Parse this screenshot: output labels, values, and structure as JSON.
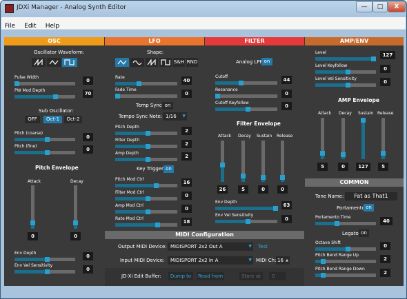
{
  "window": {
    "title": "JDXi Manager - Analog Synth Editor",
    "minimize": "—",
    "maximize": "□",
    "close": "X"
  },
  "menu": [
    "File",
    "Edit",
    "Help"
  ],
  "colors": {
    "osc_header": "#f09a1a",
    "lfo_header": "#e8742e",
    "filter_header": "#e53a3a",
    "amp_header": "#c76b2d",
    "common_header": "#6a6a6a",
    "midi_header": "#6a6a6a",
    "accent": "#2379a8"
  },
  "osc": {
    "header": "OSC",
    "waveform_label": "Oscillator Waveform:",
    "waveform_icons": [
      "saw-wave-icon",
      "triangle-wave-icon",
      "square-wave-icon"
    ],
    "waveform_selected": 2,
    "pulse_width": {
      "label": "Pulse Width",
      "value": 0
    },
    "pw_mod_depth": {
      "label": "PW Mod Depth",
      "value": 70
    },
    "sub_osc_label": "Sub Oscillator:",
    "sub_osc_options": [
      "OFF",
      "Oct-1",
      "Oct-2"
    ],
    "sub_osc_selected": 1,
    "pitch_coarse": {
      "label": "Pitch (coarse)",
      "value": 0
    },
    "pitch_fine": {
      "label": "Pitch (fine)",
      "value": 0
    },
    "pitch_env_title": "Pitch Envelope",
    "attack": {
      "label": "Attack",
      "value": 0
    },
    "decay": {
      "label": "Decay",
      "value": 0
    },
    "env_depth": {
      "label": "Env Depth",
      "value": 0
    },
    "env_vel_sens": {
      "label": "Env Vel Sensitivity",
      "value": 0
    }
  },
  "lfo": {
    "header": "LFO",
    "shape_label": "Shape:",
    "shape_buttons": [
      "triangle-wave-icon",
      "sine-wave-icon",
      "saw-wave-icon",
      "square-wave-icon",
      "S&H",
      "RND"
    ],
    "shape_selected": 0,
    "rate": {
      "label": "Rate",
      "value": 40
    },
    "fade_time": {
      "label": "Fade Time",
      "value": 0
    },
    "tempo_sync_label": "Temp Sync:",
    "tempo_sync_value": "on",
    "tempo_sync_note_label": "Tempo Sync Note:",
    "tempo_sync_note_value": "1/16",
    "pitch_depth": {
      "label": "Pitch Depth",
      "value": 2
    },
    "filter_depth": {
      "label": "Filter Depth",
      "value": 2
    },
    "amp_depth": {
      "label": "Amp Depth",
      "value": 2
    },
    "key_trigger_label": "Key Trigger:",
    "key_trigger_value": "on",
    "pitch_mod_ctrl": {
      "label": "Pitch Mod Ctrl",
      "value": 16
    },
    "filter_mod_ctrl": {
      "label": "Filter Mod Ctrl",
      "value": 0
    },
    "amp_mod_ctrl": {
      "label": "Amp Mod Ctrl",
      "value": 0
    },
    "rate_mod_ctrl": {
      "label": "Rate Mod Ctrl",
      "value": 18
    }
  },
  "filter": {
    "header": "FILTER",
    "analog_lpf_label": "Analog LPF:",
    "analog_lpf_value": "on",
    "cutoff": {
      "label": "Cutoff",
      "value": 44
    },
    "resonance": {
      "label": "Resonance",
      "value": 0
    },
    "cutoff_keyfollow": {
      "label": "Cutoff Keyfollow",
      "value": 0
    },
    "env_title": "Filter Envelope",
    "attack": {
      "label": "Attack",
      "value": 26
    },
    "decay": {
      "label": "Decay",
      "value": 5
    },
    "sustain": {
      "label": "Sustain",
      "value": 0
    },
    "release": {
      "label": "Release",
      "value": 0
    },
    "env_depth": {
      "label": "Env Depth",
      "value": 63
    },
    "env_vel_sens": {
      "label": "Env Vel Sensitivity",
      "value": 0
    }
  },
  "amp": {
    "header": "AMP/ENV",
    "level": {
      "label": "Level",
      "value": 127
    },
    "level_keyfollow": {
      "label": "Level Keyfollow",
      "value": 0
    },
    "level_vel_sens": {
      "label": "Level Vel Sensitivity",
      "value": 0
    },
    "env_title": "AMP Envelope",
    "attack": {
      "label": "Attack",
      "value": 5
    },
    "decay": {
      "label": "Decay",
      "value": 0
    },
    "sustain": {
      "label": "Sustain",
      "value": 127
    },
    "release": {
      "label": "Release",
      "value": 5
    }
  },
  "common": {
    "header": "COMMON",
    "tone_name_label": "Tone Name:",
    "tone_name_value": "Fat as That1",
    "portamento_label": "Portamento:",
    "portamento_value": "on",
    "portamento_time": {
      "label": "Portamento Time",
      "value": 40
    },
    "legato_label": "Legato:",
    "legato_value": "on",
    "octave_shift": {
      "label": "Octave Shift",
      "value": 0
    },
    "pitch_bend_up": {
      "label": "Pitch Bend Range Up",
      "value": 2
    },
    "pitch_bend_down": {
      "label": "Pitch Bend Range Down",
      "value": 2
    }
  },
  "midi": {
    "header": "MIDI Configuration",
    "output_label": "Output MIDI Device:",
    "output_value": "MIDISPORT 2x2 Out A",
    "test_label": "Test",
    "input_label": "Input MIDI Device:",
    "input_value": "MIDISPORT 2x2 In A",
    "channel_label": "MIDI Ch:",
    "channel_value": "16",
    "edit_buffer_label": "JD-Xi Edit Buffer:",
    "dump_to": "Dump to",
    "read_from": "Read from",
    "store_at": "Store at",
    "store_slot": "0"
  }
}
